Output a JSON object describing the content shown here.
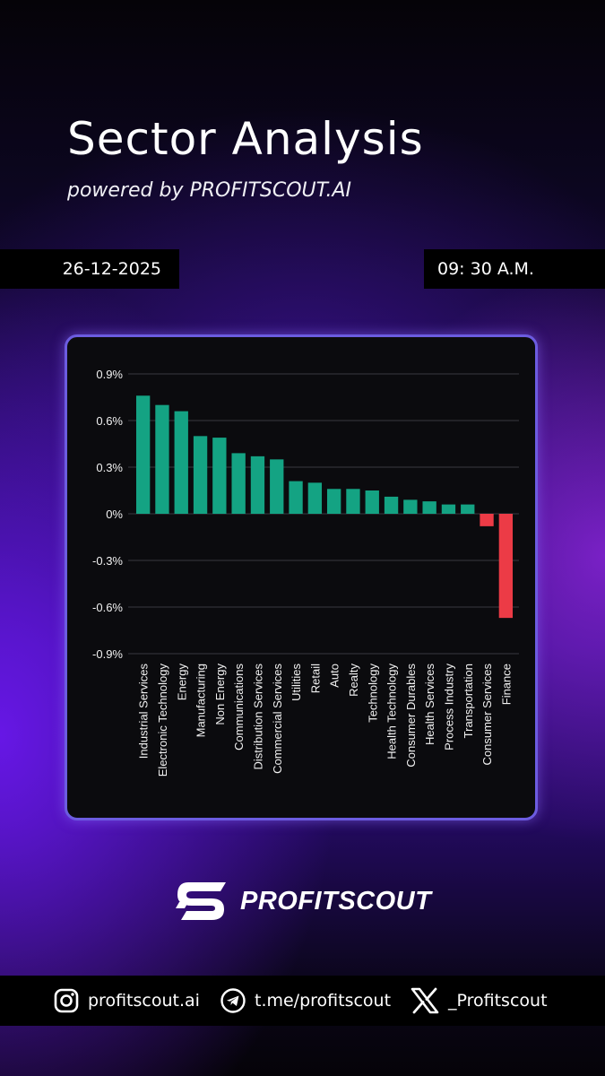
{
  "header": {
    "title": "Sector Analysis",
    "subtitle": "powered by PROFITSCOUT.AI"
  },
  "meta": {
    "date": "26-12-2025",
    "time": "09: 30 A.M."
  },
  "chart_data": {
    "type": "bar",
    "categories": [
      "Industrial Services",
      "Electronic Technology",
      "Energy",
      "Manufacturing",
      "Non Energy",
      "Communications",
      "Distribution Services",
      "Commercial Services",
      "Utilities",
      "Retail",
      "Auto",
      "Realty",
      "Technology",
      "Health Technology",
      "Consumer Durables",
      "Health Services",
      "Process Industry",
      "Transportation",
      "Consumer Services",
      "Finance"
    ],
    "values": [
      0.76,
      0.7,
      0.66,
      0.5,
      0.49,
      0.39,
      0.37,
      0.35,
      0.21,
      0.2,
      0.16,
      0.16,
      0.15,
      0.11,
      0.09,
      0.08,
      0.06,
      0.06,
      -0.08,
      -0.67
    ],
    "ylim": [
      -0.9,
      0.9
    ],
    "yticks": [
      0.9,
      0.6,
      0.3,
      0,
      -0.3,
      -0.6,
      -0.9
    ],
    "ytick_labels": [
      "0.9%",
      "0.6%",
      "0.3%",
      "0%",
      "-0.3%",
      "-0.6%",
      "-0.9%"
    ],
    "grid": true,
    "colors": {
      "positive": "#14a383",
      "negative": "#ec3b46",
      "grid": "#3a3a40",
      "background": "#0b0b0e"
    }
  },
  "brand": {
    "name": "PROFITSCOUT",
    "logo_icon": "profitscout-logo-icon"
  },
  "footer": {
    "instagram": {
      "icon": "instagram-icon",
      "label": "profitscout.ai"
    },
    "telegram": {
      "icon": "telegram-icon",
      "label": "t.me/profitscout"
    },
    "x": {
      "icon": "x-icon",
      "label": "_Profitscout"
    }
  }
}
